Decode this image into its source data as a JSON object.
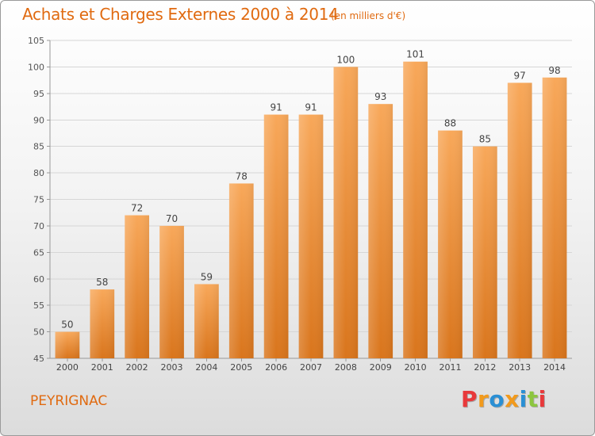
{
  "header": {
    "title": "Achats et Charges Externes 2000 à 2014",
    "unit": "(en milliers d'€)"
  },
  "footer": {
    "commune": "PEYRIGNAC",
    "logo_text": "Proxiti"
  },
  "colors": {
    "accent": "#e06a10",
    "bar_light": "#f8a85a",
    "bar_dark": "#d9751c",
    "logo_letters": [
      "#e8393b",
      "#f29a1c",
      "#2a8fd4",
      "#f29a1c",
      "#2a8fd4",
      "#8cc63f",
      "#e8393b"
    ]
  },
  "chart_data": {
    "type": "bar",
    "title": "Achats et Charges Externes 2000 à 2014",
    "subtitle": "(en milliers d'€)",
    "categories": [
      "2000",
      "2001",
      "2002",
      "2003",
      "2004",
      "2005",
      "2006",
      "2007",
      "2008",
      "2009",
      "2010",
      "2011",
      "2012",
      "2013",
      "2014"
    ],
    "values": [
      50,
      58,
      72,
      70,
      59,
      78,
      91,
      91,
      100,
      93,
      101,
      88,
      85,
      97,
      98
    ],
    "ylim": [
      45,
      105
    ],
    "yticks": [
      45,
      50,
      55,
      60,
      65,
      70,
      75,
      80,
      85,
      90,
      95,
      100,
      105
    ],
    "grid": true,
    "data_labels": true
  }
}
